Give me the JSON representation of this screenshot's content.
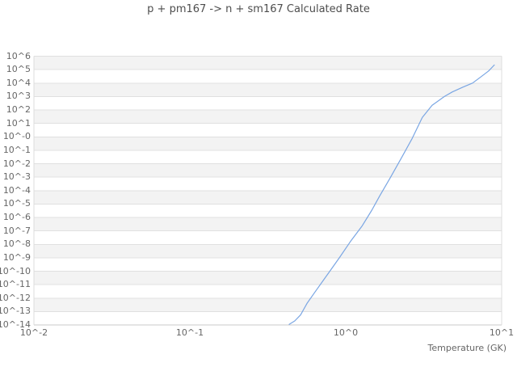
{
  "chart": {
    "title": "p + pm167 -> n + sm167 Calculated Rate",
    "xlabel": "Temperature (GK)"
  },
  "chart_data": {
    "type": "line",
    "title": "p + pm167 -> n + sm167 Calculated Rate",
    "xlabel": "Temperature (GK)",
    "ylabel": "",
    "x_scale": "log",
    "y_scale": "log",
    "xlim": [
      0.01,
      10
    ],
    "ylim": [
      1e-14,
      1000000.0
    ],
    "x_tick_labels": [
      "10^-2",
      "10^-1",
      "10^0",
      "10^1"
    ],
    "y_tick_labels": [
      "10^6",
      "10^5",
      "10^4",
      "10^3",
      "10^2",
      "10^1",
      "10^-0",
      "10^-1",
      "10^-2",
      "10^-3",
      "10^-4",
      "10^-5",
      "10^-6",
      "10^-7",
      "10^-8",
      "10^-9",
      "10^-10",
      "10^-11",
      "10^-12",
      "10^-13",
      "10^-14"
    ],
    "grid": "horizontal gridlines with alternating shaded bands, no vertical gridlines",
    "legend": null,
    "colors": {
      "line": "#7aa6e3",
      "band": "#f3f3f3",
      "gridline": "#e0e0e0",
      "axis_line": "#c9c9c9",
      "border": "#dcdcdc",
      "text": "#666666",
      "title_text": "#4d4d4d"
    },
    "series": [
      {
        "name": "calculated rate",
        "color": "#7aa6e3",
        "points": [
          [
            0.434,
            1.1e-14
          ],
          [
            0.471,
            2e-14
          ],
          [
            0.513,
            5.6e-14
          ],
          [
            0.564,
            4e-13
          ],
          [
            0.635,
            2.8e-12
          ],
          [
            0.716,
            2e-11
          ],
          [
            0.807,
            1.4e-10
          ],
          [
            0.91,
            1e-09
          ],
          [
            1.07,
            1.6e-08
          ],
          [
            1.27,
            2.2e-07
          ],
          [
            1.47,
            3.5e-06
          ],
          [
            1.65,
            4e-05
          ],
          [
            1.93,
            0.0009
          ],
          [
            2.28,
            0.028
          ],
          [
            2.66,
            0.71
          ],
          [
            3.1,
            28
          ],
          [
            3.58,
            220
          ],
          [
            4.29,
            1000.0
          ],
          [
            4.83,
            2200.0
          ],
          [
            5.64,
            5000.0
          ],
          [
            6.5,
            10000.0
          ],
          [
            7.33,
            28000.0
          ],
          [
            8.26,
            80000.0
          ],
          [
            8.97,
            220000.0
          ]
        ]
      }
    ]
  }
}
